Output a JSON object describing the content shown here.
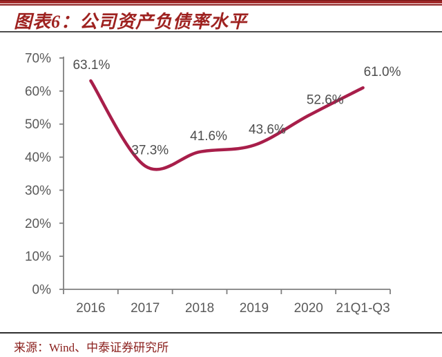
{
  "header": {
    "title": "图表6：公司资产负债率水平"
  },
  "footer": {
    "source": "来源：Wind、中泰证券研究所"
  },
  "colors": {
    "accent_bar_red": "#8c1e1e",
    "title_red": "#9e2220",
    "source_red": "#8a1f1c",
    "line_red": "#a81e4a",
    "axis_gray": "#7f7f7f",
    "tick_label_gray": "#595959",
    "point_label_gray": "#4d4d4d"
  },
  "chart_data": {
    "type": "line",
    "title": "公司资产负债率水平",
    "categories": [
      "2016",
      "2017",
      "2018",
      "2019",
      "2020",
      "21Q1-Q3"
    ],
    "values": [
      63.1,
      37.3,
      41.6,
      43.6,
      52.6,
      61.0
    ],
    "point_labels": [
      "63.1%",
      "37.3%",
      "41.6%",
      "43.6%",
      "52.6%",
      "61.0%"
    ],
    "ytick_values": [
      0,
      10,
      20,
      30,
      40,
      50,
      60,
      70
    ],
    "ytick_labels": [
      "0%",
      "10%",
      "20%",
      "30%",
      "40%",
      "50%",
      "60%",
      "70%"
    ],
    "xlabel": "",
    "ylabel": "",
    "ylim": [
      0,
      70
    ],
    "grid": false,
    "legend": "none",
    "smoothing": "spline",
    "line_color": "#a81e4a",
    "axis_color": "#7f7f7f",
    "tick_label_color": "#595959",
    "point_label_color": "#4d4d4d"
  }
}
